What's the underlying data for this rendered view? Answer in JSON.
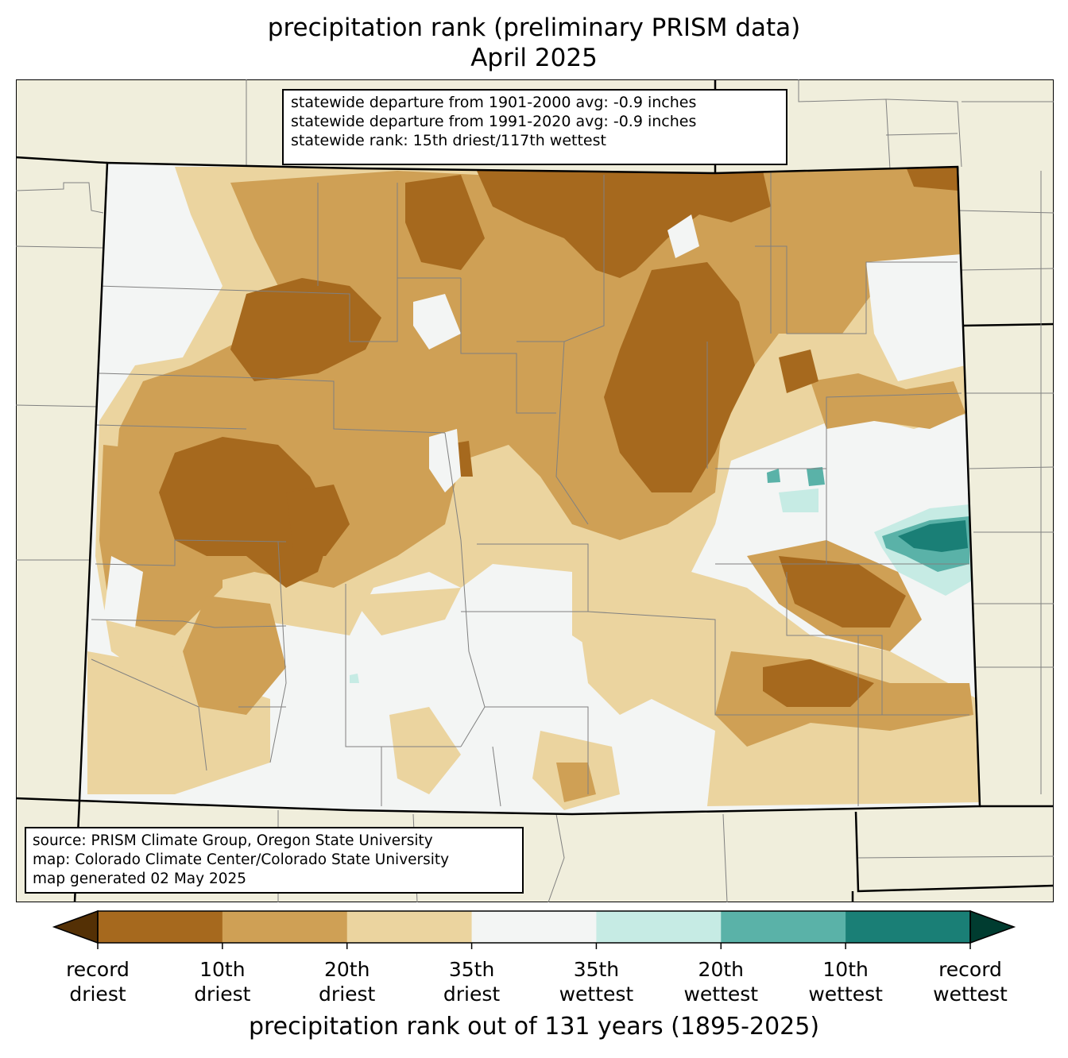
{
  "title": {
    "line1": "precipitation rank (preliminary PRISM data)",
    "line2": "April 2025"
  },
  "stats": [
    "statewide departure from 1901-2000 avg: -0.9 inches",
    "statewide departure from 1991-2020 avg: -0.9 inches",
    "statewide rank: 15th driest/117th wettest"
  ],
  "source": [
    "source: PRISM Climate Group, Oregon State University",
    "map: Colorado Climate Center/Colorado State University",
    "map generated 02 May 2025"
  ],
  "colorbar": {
    "title": "precipitation rank out of 131 years (1895-2025)",
    "labels": [
      [
        "record",
        "driest"
      ],
      [
        "10th",
        "driest"
      ],
      [
        "20th",
        "driest"
      ],
      [
        "35th",
        "driest"
      ],
      [
        "35th",
        "wettest"
      ],
      [
        "20th",
        "wettest"
      ],
      [
        "10th",
        "wettest"
      ],
      [
        "record",
        "wettest"
      ]
    ],
    "colors": [
      "#a6691e",
      "#cfa055",
      "#ebd49f",
      "#f3f5f4",
      "#c6ebe4",
      "#5ab2a8",
      "#1a7f76"
    ],
    "extend_low_color": "#543005",
    "extend_high_color": "#003c30"
  },
  "map_colors": {
    "background": "#f0eedc",
    "state_fill": "#f3f5f4",
    "county_lines": "#808080",
    "state_border": "#000000"
  }
}
